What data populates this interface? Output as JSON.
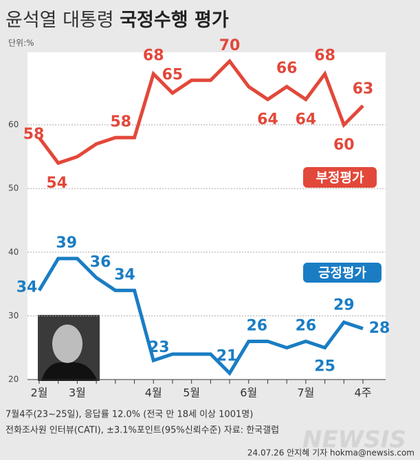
{
  "chart_data": {
    "type": "line",
    "title": "윤석열 대통령",
    "title_bold": "국정수행 평가",
    "unit": "단위:%",
    "categories": [
      "2월",
      null,
      "3월",
      null,
      null,
      null,
      "4월",
      null,
      "5월",
      null,
      null,
      "6월",
      null,
      null,
      "7월",
      null,
      null,
      "4주"
    ],
    "series": [
      {
        "name": "부정평가",
        "color": "#e2483a",
        "values": [
          58,
          54,
          55,
          57,
          58,
          58,
          68,
          65,
          67,
          67,
          70,
          66,
          64,
          66,
          64,
          68,
          60,
          63
        ],
        "value_labels": [
          "58",
          "54",
          null,
          null,
          "58",
          null,
          "68",
          "65",
          null,
          null,
          "70",
          null,
          "64",
          "66",
          "64",
          "68",
          "60",
          "63"
        ]
      },
      {
        "name": "긍정평가",
        "color": "#1a7dc4",
        "values": [
          34,
          39,
          39,
          36,
          34,
          34,
          23,
          24,
          24,
          24,
          21,
          26,
          26,
          25,
          26,
          25,
          29,
          28
        ],
        "value_labels": [
          "34",
          "39",
          null,
          "36",
          null,
          "34",
          "23",
          null,
          null,
          null,
          "21",
          "26",
          null,
          null,
          "26",
          "25",
          "29",
          "28"
        ]
      }
    ],
    "ylim": [
      20,
      70
    ],
    "yticks": [
      20,
      30,
      40,
      50,
      60
    ],
    "grid": true,
    "notes": [
      "7월4주(23~25일), 응답률 12.0% (전국 만 18세 이상 1001명)",
      "전화조사원 인터뷰(CATI), ±3.1%포인트(95%신뢰수준) 자료: 한국갤럽"
    ],
    "credit": "24.07.26 안지혜 기자 hokma@newsis.com",
    "watermark": "NEWSIS"
  }
}
